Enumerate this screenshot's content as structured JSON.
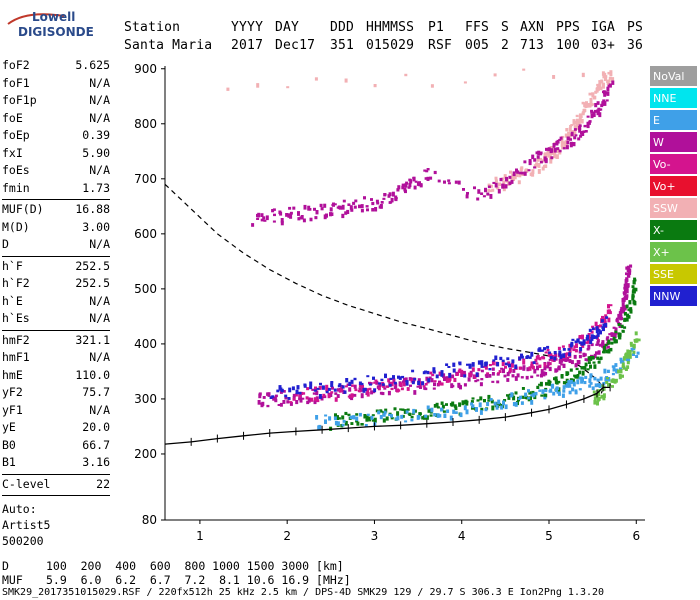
{
  "logo": {
    "line1": "Lowell",
    "line2": "DIGISONDE"
  },
  "header": {
    "row1": [
      "Station",
      "YYYY",
      "DAY",
      "DDD",
      "HHMMSS",
      "P1",
      "FFS",
      "S",
      "AXN",
      "PPS",
      "IGA",
      "PS"
    ],
    "row2": [
      "Santa Maria",
      "2017",
      "Dec17",
      "351",
      "015029",
      "RSF",
      "005",
      "2",
      "713",
      "100",
      "03+",
      "36"
    ]
  },
  "params": {
    "group1": [
      {
        "name": "foF2",
        "value": "5.625"
      },
      {
        "name": "foF1",
        "value": "N/A"
      },
      {
        "name": "foF1p",
        "value": "N/A"
      },
      {
        "name": "foE",
        "value": "N/A"
      },
      {
        "name": "foEp",
        "value": "0.39"
      },
      {
        "name": "fxI",
        "value": "5.90"
      },
      {
        "name": "foEs",
        "value": "N/A"
      },
      {
        "name": "fmin",
        "value": "1.73"
      }
    ],
    "group2": [
      {
        "name": "MUF(D)",
        "value": "16.88"
      },
      {
        "name": "M(D)",
        "value": "3.00"
      },
      {
        "name": "D",
        "value": "N/A"
      }
    ],
    "group3": [
      {
        "name": "h`F",
        "value": "252.5"
      },
      {
        "name": "h`F2",
        "value": "252.5"
      },
      {
        "name": "h`E",
        "value": "N/A"
      },
      {
        "name": "h`Es",
        "value": "N/A"
      }
    ],
    "group4": [
      {
        "name": "hmF2",
        "value": "321.1"
      },
      {
        "name": "hmF1",
        "value": "N/A"
      },
      {
        "name": "hmE",
        "value": "110.0"
      },
      {
        "name": "yF2",
        "value": "75.7"
      },
      {
        "name": "yF1",
        "value": "N/A"
      },
      {
        "name": "yE",
        "value": "20.0"
      },
      {
        "name": "B0",
        "value": "66.7"
      },
      {
        "name": "B1",
        "value": "3.16"
      }
    ],
    "group5": [
      {
        "name": "C-level",
        "value": "22"
      }
    ],
    "auto_label": "Auto:",
    "auto_name": "Artist5",
    "auto_version": "500200"
  },
  "legend": [
    {
      "label": "NoVal",
      "color": "#9e9e9e"
    },
    {
      "label": "NNE",
      "color": "#00e5ee"
    },
    {
      "label": "E",
      "color": "#3fa0e8"
    },
    {
      "label": "W",
      "color": "#b0109a"
    },
    {
      "label": "Vo-",
      "color": "#d4148e"
    },
    {
      "label": "Vo+",
      "color": "#e8102e"
    },
    {
      "label": "SSW",
      "color": "#f2b0b4"
    },
    {
      "label": "X-",
      "color": "#0a7a10"
    },
    {
      "label": "X+",
      "color": "#6cc24a"
    },
    {
      "label": "SSE",
      "color": "#c8c800"
    },
    {
      "label": "NNW",
      "color": "#2020d0"
    }
  ],
  "chart_data": {
    "type": "scatter",
    "xlim": [
      0.6,
      6.1
    ],
    "ylim": [
      80,
      905
    ],
    "xticks": [
      "1",
      "2",
      "3",
      "4",
      "5",
      "6"
    ],
    "xtick_values": [
      1,
      2,
      3,
      4,
      5,
      6
    ],
    "yticks": [
      "80",
      "200",
      "300",
      "400",
      "500",
      "600",
      "700",
      "800",
      "900"
    ],
    "ytick_values": [
      80,
      200,
      300,
      400,
      500,
      600,
      700,
      800,
      900
    ],
    "series": [
      {
        "name": "W",
        "color": "#b0109a",
        "values": [
          [
            1.65,
            300
          ],
          [
            1.9,
            303
          ],
          [
            2.2,
            308
          ],
          [
            2.5,
            313
          ],
          [
            2.8,
            318
          ],
          [
            3.1,
            323
          ],
          [
            3.4,
            328
          ],
          [
            3.7,
            333
          ],
          [
            4.0,
            338
          ],
          [
            4.3,
            344
          ],
          [
            4.6,
            350
          ],
          [
            4.9,
            358
          ],
          [
            5.1,
            366
          ],
          [
            5.3,
            376
          ],
          [
            5.5,
            390
          ],
          [
            5.65,
            408
          ],
          [
            5.75,
            430
          ],
          [
            5.82,
            460
          ],
          [
            5.86,
            490
          ],
          [
            5.88,
            520
          ],
          [
            5.9,
            545
          ]
        ]
      },
      {
        "name": "Vo-",
        "color": "#d4148e",
        "values": [
          [
            2.0,
            306
          ],
          [
            2.4,
            312
          ],
          [
            2.8,
            320
          ],
          [
            3.2,
            328
          ],
          [
            3.6,
            338
          ],
          [
            4.0,
            348
          ],
          [
            4.4,
            358
          ],
          [
            4.8,
            370
          ],
          [
            5.0,
            380
          ],
          [
            5.2,
            392
          ],
          [
            5.4,
            410
          ],
          [
            5.6,
            440
          ],
          [
            5.7,
            470
          ]
        ]
      },
      {
        "name": "NNW",
        "color": "#2020d0",
        "values": [
          [
            1.8,
            311
          ],
          [
            2.2,
            318
          ],
          [
            2.6,
            325
          ],
          [
            3.0,
            332
          ],
          [
            3.4,
            342
          ],
          [
            3.8,
            352
          ],
          [
            4.2,
            362
          ],
          [
            4.6,
            372
          ],
          [
            5.0,
            385
          ],
          [
            5.3,
            400
          ],
          [
            5.5,
            420
          ],
          [
            5.65,
            445
          ]
        ]
      },
      {
        "name": "SSW",
        "color": "#f2b0b4",
        "values": [
          [
            4.3,
            690
          ],
          [
            4.5,
            700
          ],
          [
            4.7,
            715
          ],
          [
            4.9,
            730
          ],
          [
            5.0,
            745
          ],
          [
            5.1,
            760
          ],
          [
            5.2,
            780
          ],
          [
            5.3,
            805
          ],
          [
            5.4,
            830
          ],
          [
            5.5,
            855
          ],
          [
            5.6,
            880
          ],
          [
            5.7,
            895
          ],
          [
            0.95,
            865
          ]
        ]
      },
      {
        "name": "W",
        "color": "#b0109a",
        "values": [
          [
            1.6,
            630
          ],
          [
            1.9,
            635
          ],
          [
            2.2,
            640
          ],
          [
            2.5,
            645
          ],
          [
            2.7,
            652
          ],
          [
            3.0,
            660
          ],
          [
            3.2,
            672
          ],
          [
            3.4,
            690
          ],
          [
            3.6,
            710
          ],
          [
            4.2,
            670
          ],
          [
            4.5,
            700
          ],
          [
            4.8,
            735
          ],
          [
            5.0,
            750
          ],
          [
            5.2,
            770
          ],
          [
            5.35,
            790
          ],
          [
            5.5,
            820
          ],
          [
            5.6,
            845
          ],
          [
            5.7,
            870
          ]
        ]
      },
      {
        "name": "X-",
        "color": "#0a7a10",
        "values": [
          [
            2.5,
            262
          ],
          [
            2.8,
            268
          ],
          [
            3.1,
            272
          ],
          [
            3.4,
            276
          ],
          [
            3.7,
            282
          ],
          [
            4.0,
            288
          ],
          [
            4.3,
            296
          ],
          [
            4.6,
            306
          ],
          [
            4.9,
            318
          ],
          [
            5.1,
            332
          ],
          [
            5.3,
            350
          ],
          [
            5.5,
            370
          ],
          [
            5.7,
            400
          ],
          [
            5.85,
            440
          ],
          [
            5.95,
            480
          ],
          [
            5.98,
            520
          ]
        ]
      },
      {
        "name": "E",
        "color": "#3fa0e8",
        "values": [
          [
            2.3,
            260
          ],
          [
            2.8,
            266
          ],
          [
            3.3,
            272
          ],
          [
            3.8,
            280
          ],
          [
            4.3,
            292
          ],
          [
            4.7,
            304
          ],
          [
            5.0,
            315
          ],
          [
            5.2,
            322
          ],
          [
            5.4,
            330
          ],
          [
            5.6,
            340
          ],
          [
            5.8,
            360
          ],
          [
            6.0,
            395
          ]
        ]
      },
      {
        "name": "X+",
        "color": "#6cc24a",
        "values": [
          [
            5.5,
            300
          ],
          [
            5.6,
            318
          ],
          [
            5.8,
            350
          ],
          [
            5.9,
            380
          ],
          [
            6.0,
            420
          ]
        ]
      }
    ],
    "profile_line": [
      [
        0.6,
        218
      ],
      [
        0.9,
        222
      ],
      [
        1.2,
        228
      ],
      [
        1.5,
        233
      ],
      [
        1.8,
        238
      ],
      [
        2.1,
        241
      ],
      [
        2.4,
        244
      ],
      [
        2.7,
        247
      ],
      [
        3.0,
        250
      ],
      [
        3.3,
        252
      ],
      [
        3.6,
        255
      ],
      [
        3.9,
        258
      ],
      [
        4.2,
        262
      ],
      [
        4.5,
        267
      ],
      [
        4.8,
        275
      ],
      [
        5.0,
        281
      ],
      [
        5.2,
        290
      ],
      [
        5.4,
        300
      ],
      [
        5.55,
        310
      ],
      [
        5.62,
        321
      ],
      [
        5.7,
        321
      ]
    ],
    "dashed_line": [
      [
        0.6,
        690
      ],
      [
        0.8,
        660
      ],
      [
        1.0,
        630
      ],
      [
        1.2,
        600
      ],
      [
        1.5,
        565
      ],
      [
        1.8,
        535
      ],
      [
        2.1,
        510
      ],
      [
        2.4,
        488
      ],
      [
        2.7,
        470
      ],
      [
        3.0,
        455
      ],
      [
        3.3,
        440
      ],
      [
        3.6,
        428
      ],
      [
        3.9,
        415
      ],
      [
        4.2,
        402
      ],
      [
        4.5,
        392
      ],
      [
        4.8,
        384
      ],
      [
        5.0,
        378
      ],
      [
        5.2,
        370
      ],
      [
        5.35,
        360
      ],
      [
        5.45,
        348
      ],
      [
        5.55,
        335
      ],
      [
        5.62,
        322
      ],
      [
        5.6,
        310
      ]
    ]
  },
  "bottom": {
    "row_d_label": "D",
    "row_d_values": "100  200  400  600  800 1000 1500 3000 [km]",
    "row_muf_label": "MUF",
    "row_muf_values": "5.9  6.0  6.2  6.7  7.2  8.1 10.6 16.9 [MHz]",
    "footer": "SMK29_2017351015029.RSF / 220fx512h 25 kHz 2.5 km / DPS-4D SMK29 129 / 29.7 S 306.3 E Ion2Png 1.3.20"
  }
}
